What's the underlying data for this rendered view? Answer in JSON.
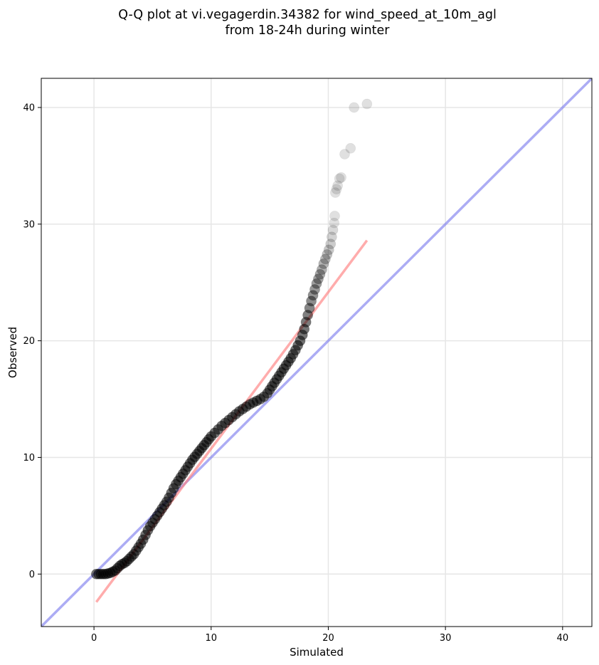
{
  "chart_data": {
    "type": "scatter",
    "title": "Q-Q plot at vi.vegagerdin.34382 for wind_speed_at_10m_agl",
    "subtitle": "from 18-24h during winter",
    "xlabel": "Simulated",
    "ylabel": "Observed",
    "xlim": [
      -4.5,
      42.5
    ],
    "ylim": [
      -4.5,
      42.5
    ],
    "xticks": [
      0,
      10,
      20,
      30,
      40
    ],
    "yticks": [
      0,
      10,
      20,
      30,
      40
    ],
    "grid": true,
    "colors": {
      "points": "#000000",
      "fit_line": "#ff7f7f",
      "identity_line": "#7f7fee",
      "grid": "#e6e6e6"
    },
    "identity_line": {
      "x": [
        -4.5,
        42.5
      ],
      "y": [
        -4.5,
        42.5
      ]
    },
    "fit_line": {
      "x": [
        0.2,
        23.3
      ],
      "y": [
        -2.4,
        28.6
      ]
    },
    "quantiles": {
      "x": [
        0.2,
        0.4,
        0.6,
        0.8,
        1.0,
        1.2,
        1.4,
        1.6,
        1.8,
        2.0,
        2.2,
        2.4,
        2.6,
        2.8,
        3.0,
        3.2,
        3.4,
        3.6,
        3.8,
        4.0,
        4.2,
        4.4,
        4.6,
        4.8,
        5.0,
        5.2,
        5.4,
        5.6,
        5.8,
        6.0,
        6.2,
        6.4,
        6.6,
        6.8,
        7.0,
        7.2,
        7.4,
        7.6,
        7.8,
        8.0,
        8.2,
        8.4,
        8.6,
        8.8,
        9.0,
        9.2,
        9.4,
        9.6,
        9.8,
        10.0,
        10.3,
        10.6,
        10.9,
        11.2,
        11.5,
        11.8,
        12.1,
        12.4,
        12.7,
        13.0,
        13.3,
        13.6,
        13.9,
        14.2,
        14.5,
        14.8,
        15.0,
        15.2,
        15.4,
        15.6,
        15.8,
        16.0,
        16.2,
        16.4,
        16.6,
        16.8,
        17.0,
        17.2,
        17.4,
        17.6,
        17.8,
        17.95,
        18.1,
        18.25,
        18.4,
        18.55,
        18.7,
        18.85,
        19.0,
        19.15,
        19.3,
        19.45,
        19.6,
        19.75,
        19.9,
        20.05,
        20.2,
        20.3,
        20.4,
        20.5,
        20.55,
        20.6,
        20.7,
        20.8,
        20.95,
        21.1,
        21.4,
        21.9,
        22.2,
        23.3
      ],
      "y": [
        0.0,
        0.0,
        0.0,
        0.0,
        0.0,
        0.05,
        0.1,
        0.2,
        0.3,
        0.5,
        0.7,
        0.85,
        0.95,
        1.1,
        1.3,
        1.5,
        1.7,
        2.0,
        2.3,
        2.6,
        2.95,
        3.35,
        3.75,
        4.1,
        4.4,
        4.7,
        5.0,
        5.3,
        5.6,
        5.9,
        6.2,
        6.55,
        6.95,
        7.35,
        7.7,
        8.0,
        8.3,
        8.6,
        8.9,
        9.2,
        9.5,
        9.8,
        10.05,
        10.3,
        10.55,
        10.8,
        11.05,
        11.3,
        11.55,
        11.8,
        12.1,
        12.4,
        12.7,
        12.95,
        13.2,
        13.45,
        13.7,
        13.95,
        14.15,
        14.35,
        14.55,
        14.7,
        14.85,
        15.0,
        15.2,
        15.5,
        15.8,
        16.1,
        16.4,
        16.7,
        17.0,
        17.3,
        17.6,
        17.9,
        18.2,
        18.5,
        18.85,
        19.2,
        19.6,
        20.0,
        20.5,
        21.0,
        21.6,
        22.2,
        22.8,
        23.4,
        23.9,
        24.4,
        24.9,
        25.3,
        25.7,
        26.1,
        26.6,
        27.0,
        27.4,
        27.8,
        28.3,
        28.9,
        29.5,
        30.1,
        30.7,
        32.7,
        33.0,
        33.3,
        33.9,
        34.0,
        36.0,
        36.5,
        40.0,
        40.3
      ]
    }
  }
}
